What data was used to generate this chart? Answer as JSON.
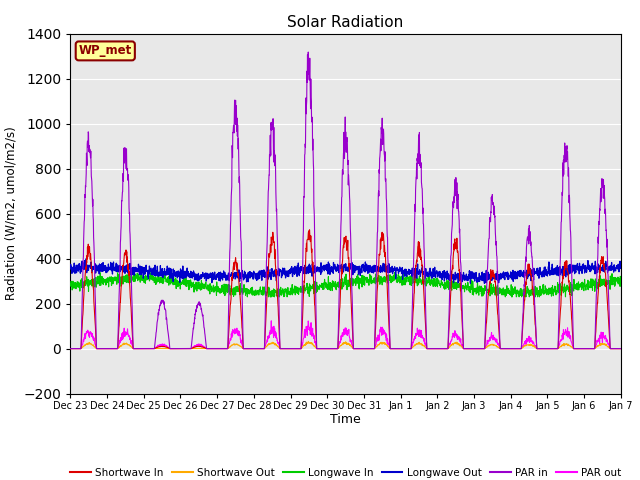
{
  "title": "Solar Radiation",
  "xlabel": "Time",
  "ylabel": "Radiation (W/m2, umol/m2/s)",
  "ylim": [
    -200,
    1400
  ],
  "bg_color": "#e8e8e8",
  "fig_color": "#ffffff",
  "annotation": "WP_met",
  "series": {
    "shortwave_in": {
      "color": "#dd0000",
      "label": "Shortwave In",
      "lw": 0.8
    },
    "shortwave_out": {
      "color": "#ffaa00",
      "label": "Shortwave Out",
      "lw": 0.8
    },
    "longwave_in": {
      "color": "#00cc00",
      "label": "Longwave In",
      "lw": 0.8
    },
    "longwave_out": {
      "color": "#0000cc",
      "label": "Longwave Out",
      "lw": 0.9
    },
    "par_in": {
      "color": "#9900cc",
      "label": "PAR in",
      "lw": 0.8
    },
    "par_out": {
      "color": "#ff00ff",
      "label": "PAR out",
      "lw": 0.8
    }
  },
  "xtick_labels": [
    "Dec 23",
    "Dec 24",
    "Dec 25",
    "Dec 26",
    "Dec 27",
    "Dec 28",
    "Dec 29",
    "Dec 30",
    "Dec 31",
    "Jan 1",
    "Jan 2",
    "Jan 3",
    "Jan 4",
    "Jan 5",
    "Jan 6",
    "Jan 7"
  ],
  "n_days": 15,
  "pts_per_day": 144
}
